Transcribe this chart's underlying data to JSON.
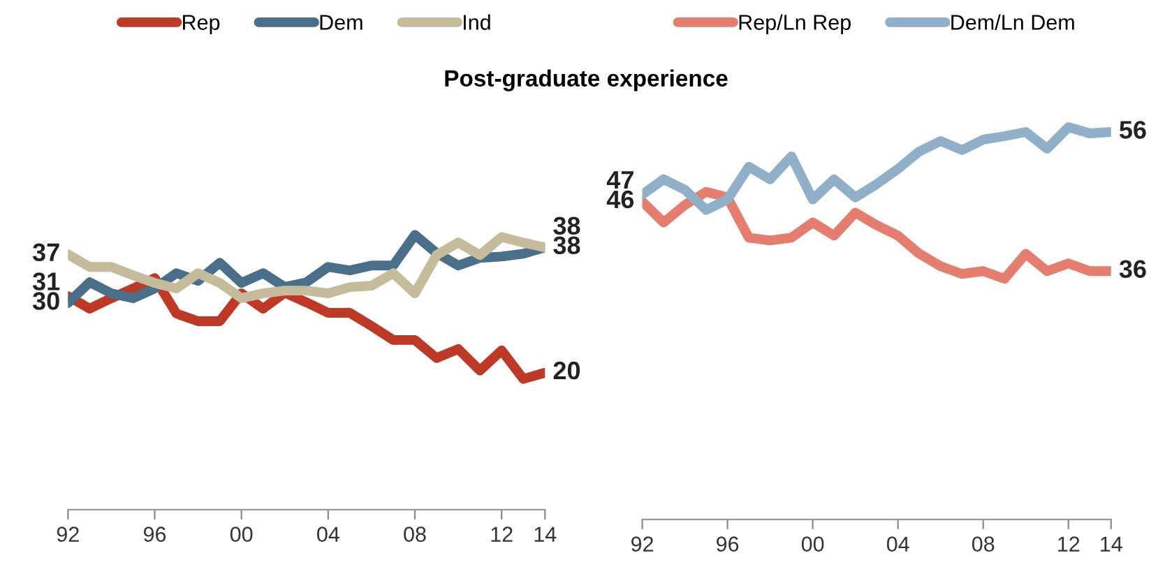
{
  "chart_data": [
    {
      "type": "line",
      "title": "Post-graduate experience",
      "x": [
        1992,
        1993,
        1994,
        1995,
        1996,
        1997,
        1998,
        1999,
        2000,
        2001,
        2002,
        2003,
        2004,
        2005,
        2006,
        2007,
        2008,
        2009,
        2010,
        2011,
        2012,
        2013,
        2014
      ],
      "series": [
        {
          "name": "Rep",
          "color": "#bf3927",
          "values": [
            31,
            29.2,
            30.7,
            32.1,
            33.6,
            28.5,
            27.4,
            27.4,
            31.4,
            29.2,
            31.5,
            30.1,
            28.6,
            28.6,
            26.7,
            24.7,
            24.7,
            22.1,
            23.4,
            20.3,
            23.2,
            19.1,
            20
          ],
          "value_labels": [
            "31",
            null,
            null,
            null,
            null,
            null,
            null,
            null,
            null,
            null,
            null,
            null,
            null,
            null,
            null,
            null,
            null,
            null,
            null,
            null,
            null,
            null,
            "20"
          ]
        },
        {
          "name": "Dem",
          "color": "#4a6f8a",
          "values": [
            30,
            33,
            31.4,
            30.7,
            32.1,
            34.3,
            33.2,
            35.8,
            32.9,
            34.3,
            32.3,
            33,
            35.2,
            34.7,
            35.4,
            35.4,
            39.8,
            37.2,
            35.4,
            36.5,
            36.7,
            37.1,
            38
          ],
          "value_labels": [
            "30",
            null,
            null,
            null,
            null,
            null,
            null,
            null,
            null,
            null,
            null,
            null,
            null,
            null,
            null,
            null,
            null,
            null,
            null,
            null,
            null,
            null,
            "38"
          ]
        },
        {
          "name": "Ind",
          "color": "#c5bc9b",
          "values": [
            37,
            35.2,
            35.2,
            34,
            32.9,
            32.1,
            34.3,
            32.9,
            30.7,
            31.4,
            31.8,
            31.8,
            31.4,
            32.3,
            32.5,
            34.3,
            31.4,
            36.9,
            38.7,
            36.9,
            39.5,
            38.7,
            38
          ],
          "value_labels": [
            "37",
            null,
            null,
            null,
            null,
            null,
            null,
            null,
            null,
            null,
            null,
            null,
            null,
            null,
            null,
            null,
            null,
            null,
            null,
            null,
            null,
            null,
            "38"
          ]
        }
      ],
      "xlim": [
        1992,
        2014
      ],
      "xticks": [
        {
          "value": 1992,
          "label": "92"
        },
        {
          "value": 1996,
          "label": "96"
        },
        {
          "value": 2000,
          "label": "00"
        },
        {
          "value": 2004,
          "label": "04"
        },
        {
          "value": 2008,
          "label": "08"
        },
        {
          "value": 2012,
          "label": "12"
        },
        {
          "value": 2014,
          "label": "14"
        }
      ],
      "tick_labels": "x",
      "grid": false,
      "legend": "top",
      "marker": "none",
      "line_style": "solid"
    },
    {
      "type": "line",
      "x": [
        1992,
        1993,
        1994,
        1995,
        1996,
        1997,
        1998,
        1999,
        2000,
        2001,
        2002,
        2003,
        2004,
        2005,
        2006,
        2007,
        2008,
        2009,
        2010,
        2011,
        2012,
        2013,
        2014
      ],
      "series": [
        {
          "name": "Rep/Ln Rep",
          "color": "#e57e6f",
          "values": [
            46,
            43,
            45.5,
            47.4,
            46.6,
            40.8,
            40.4,
            40.8,
            43,
            41.1,
            44.4,
            42.6,
            41.1,
            38.5,
            36.7,
            35.6,
            36,
            34.9,
            38.5,
            36,
            37.1,
            36,
            36
          ],
          "value_labels": [
            "46",
            null,
            null,
            null,
            null,
            null,
            null,
            null,
            null,
            null,
            null,
            null,
            null,
            null,
            null,
            null,
            null,
            null,
            null,
            null,
            null,
            null,
            "36"
          ]
        },
        {
          "name": "Dem/Ln Dem",
          "color": "#8fb0c8",
          "values": [
            47,
            49.2,
            47.7,
            44.8,
            46.3,
            51,
            49.2,
            52.5,
            46.3,
            49.2,
            46.6,
            48.5,
            50.7,
            53.2,
            54.7,
            53.4,
            54.9,
            55.4,
            56,
            53.6,
            56.7,
            55.8,
            56
          ],
          "value_labels": [
            "47",
            null,
            null,
            null,
            null,
            null,
            null,
            null,
            null,
            null,
            null,
            null,
            null,
            null,
            null,
            null,
            null,
            null,
            null,
            null,
            null,
            null,
            "56"
          ]
        }
      ],
      "xlim": [
        1992,
        2014
      ],
      "xticks": [
        {
          "value": 1992,
          "label": "92"
        },
        {
          "value": 1996,
          "label": "96"
        },
        {
          "value": 2000,
          "label": "00"
        },
        {
          "value": 2004,
          "label": "04"
        },
        {
          "value": 2008,
          "label": "08"
        },
        {
          "value": 2012,
          "label": "12"
        },
        {
          "value": 2014,
          "label": "14"
        }
      ],
      "tick_labels": "x",
      "grid": false,
      "legend": "top",
      "marker": "none",
      "line_style": "solid"
    }
  ]
}
